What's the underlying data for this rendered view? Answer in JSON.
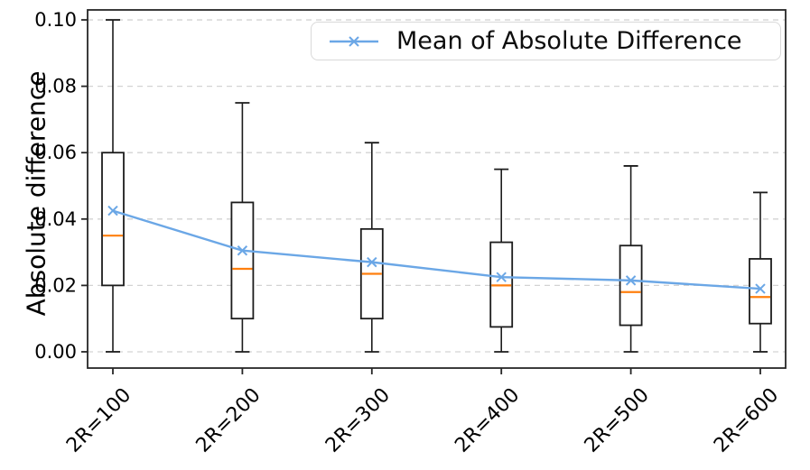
{
  "chart_data": {
    "type": "boxplot",
    "title": "",
    "xlabel": "",
    "ylabel": "Absolute difference",
    "categories": [
      "2R=100",
      "2R=200",
      "2R=300",
      "2R=400",
      "2R=500",
      "2R=600"
    ],
    "yticks": [
      "0.00",
      "0.02",
      "0.04",
      "0.06",
      "0.08",
      "0.10"
    ],
    "ytick_values": [
      0.0,
      0.02,
      0.04,
      0.06,
      0.08,
      0.1
    ],
    "ylim": [
      -0.0049,
      0.103
    ],
    "grid": "horizontal-dashed",
    "legend_position": "upper-right",
    "boxes": [
      {
        "category": "2R=100",
        "whisker_low": 0.0,
        "q1": 0.02,
        "median": 0.035,
        "q3": 0.06,
        "whisker_high": 0.1
      },
      {
        "category": "2R=200",
        "whisker_low": 0.0,
        "q1": 0.01,
        "median": 0.025,
        "q3": 0.045,
        "whisker_high": 0.075
      },
      {
        "category": "2R=300",
        "whisker_low": 0.0,
        "q1": 0.01,
        "median": 0.0235,
        "q3": 0.037,
        "whisker_high": 0.063
      },
      {
        "category": "2R=400",
        "whisker_low": 0.0,
        "q1": 0.0075,
        "median": 0.02,
        "q3": 0.033,
        "whisker_high": 0.055
      },
      {
        "category": "2R=500",
        "whisker_low": 0.0,
        "q1": 0.008,
        "median": 0.018,
        "q3": 0.032,
        "whisker_high": 0.056
      },
      {
        "category": "2R=600",
        "whisker_low": 0.0,
        "q1": 0.0085,
        "median": 0.0165,
        "q3": 0.028,
        "whisker_high": 0.048
      }
    ],
    "series": [
      {
        "name": "Mean of Absolute Difference",
        "type": "line",
        "marker": "x",
        "values": [
          0.0425,
          0.0305,
          0.027,
          0.0225,
          0.0215,
          0.019
        ]
      }
    ],
    "legend": {
      "label": "Mean of Absolute Difference"
    },
    "colors": {
      "mean_line": "#6ba7e6",
      "median": "#ff7f0e",
      "box_edge": "#1c1c1c",
      "box_fill": "#ffffff",
      "grid": "#d3d3d3",
      "axis": "#262626",
      "text": "#000000",
      "legend_border": "#d9d9d9"
    }
  }
}
